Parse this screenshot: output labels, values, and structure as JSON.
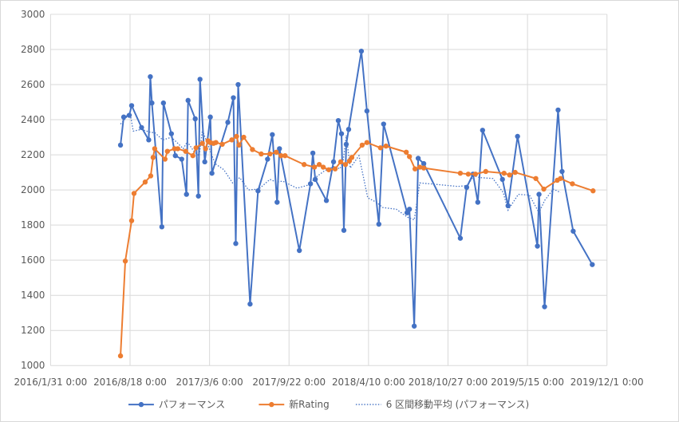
{
  "chart_data": {
    "type": "line",
    "title": "",
    "xlabel": "",
    "ylabel": "",
    "xlim": [
      "2016-01-31",
      "2019-12-01"
    ],
    "ylim": [
      1000,
      3000
    ],
    "grid": true,
    "legend_position": "bottom",
    "x_ticks": [
      "2016/1/31 0:00",
      "2016/8/18 0:00",
      "2017/3/6 0:00",
      "2017/9/22 0:00",
      "2018/4/10 0:00",
      "2018/10/27 0:00",
      "2019/5/15 0:00",
      "2019/12/1 0:00"
    ],
    "y_ticks": [
      "1000",
      "1200",
      "1400",
      "1600",
      "1800",
      "2000",
      "2200",
      "2400",
      "2600",
      "2800",
      "3000"
    ],
    "series": [
      {
        "name": "パフォーマンス",
        "color": "#4472C4",
        "style": "solid-marker",
        "points": [
          [
            "2016-07-25",
            2255
          ],
          [
            "2016-08-02",
            2415
          ],
          [
            "2016-08-16",
            2425
          ],
          [
            "2016-08-22",
            2480
          ],
          [
            "2016-09-16",
            2355
          ],
          [
            "2016-10-04",
            2285
          ],
          [
            "2016-10-08",
            2645
          ],
          [
            "2016-10-12",
            2495
          ],
          [
            "2016-11-06",
            1790
          ],
          [
            "2016-11-10",
            2495
          ],
          [
            "2016-11-30",
            2320
          ],
          [
            "2016-12-10",
            2195
          ],
          [
            "2016-12-26",
            2175
          ],
          [
            "2017-01-07",
            1975
          ],
          [
            "2017-01-11",
            2510
          ],
          [
            "2017-01-29",
            2405
          ],
          [
            "2017-02-06",
            1965
          ],
          [
            "2017-02-10",
            2630
          ],
          [
            "2017-02-22",
            2160
          ],
          [
            "2017-03-08",
            2415
          ],
          [
            "2017-03-12",
            2095
          ],
          [
            "2017-04-21",
            2385
          ],
          [
            "2017-05-05",
            2525
          ],
          [
            "2017-05-11",
            1695
          ],
          [
            "2017-05-17",
            2600
          ],
          [
            "2017-06-16",
            1350
          ],
          [
            "2017-07-06",
            1995
          ],
          [
            "2017-07-30",
            2175
          ],
          [
            "2017-08-11",
            2315
          ],
          [
            "2017-08-23",
            1930
          ],
          [
            "2017-08-29",
            2235
          ],
          [
            "2017-10-18",
            1655
          ],
          [
            "2017-11-15",
            2035
          ],
          [
            "2017-11-21",
            2210
          ],
          [
            "2017-11-27",
            2060
          ],
          [
            "2017-12-25",
            1940
          ],
          [
            "2018-01-12",
            2160
          ],
          [
            "2018-01-24",
            2395
          ],
          [
            "2018-02-01",
            2320
          ],
          [
            "2018-02-07",
            1770
          ],
          [
            "2018-02-13",
            2260
          ],
          [
            "2018-02-19",
            2345
          ],
          [
            "2018-03-23",
            2790
          ],
          [
            "2018-04-06",
            2450
          ],
          [
            "2018-05-06",
            1805
          ],
          [
            "2018-05-18",
            2375
          ],
          [
            "2018-07-16",
            1870
          ],
          [
            "2018-07-22",
            1890
          ],
          [
            "2018-08-03",
            1225
          ],
          [
            "2018-08-13",
            2180
          ],
          [
            "2018-08-27",
            2150
          ],
          [
            "2018-11-27",
            1725
          ],
          [
            "2018-12-13",
            2015
          ],
          [
            "2018-12-29",
            2090
          ],
          [
            "2019-01-10",
            1930
          ],
          [
            "2019-01-22",
            2340
          ],
          [
            "2019-03-13",
            2060
          ],
          [
            "2019-03-27",
            1910
          ],
          [
            "2019-04-20",
            2305
          ],
          [
            "2019-06-09",
            1680
          ],
          [
            "2019-06-13",
            1975
          ],
          [
            "2019-06-27",
            1335
          ],
          [
            "2019-07-31",
            2455
          ],
          [
            "2019-08-10",
            2105
          ],
          [
            "2019-09-07",
            1765
          ],
          [
            "2019-10-25",
            1575
          ]
        ]
      },
      {
        "name": "新Rating",
        "color": "#ED7D31",
        "style": "solid-marker",
        "points": [
          [
            "2016-07-25",
            1055
          ],
          [
            "2016-08-06",
            1595
          ],
          [
            "2016-08-22",
            1825
          ],
          [
            "2016-08-28",
            1980
          ],
          [
            "2016-09-25",
            2045
          ],
          [
            "2016-10-09",
            2080
          ],
          [
            "2016-10-15",
            2185
          ],
          [
            "2016-10-19",
            2235
          ],
          [
            "2016-11-14",
            2175
          ],
          [
            "2016-11-20",
            2220
          ],
          [
            "2016-12-08",
            2235
          ],
          [
            "2016-12-16",
            2235
          ],
          [
            "2017-01-05",
            2220
          ],
          [
            "2017-01-23",
            2195
          ],
          [
            "2017-01-31",
            2240
          ],
          [
            "2017-02-16",
            2265
          ],
          [
            "2017-02-24",
            2235
          ],
          [
            "2017-03-02",
            2280
          ],
          [
            "2017-03-08",
            2270
          ],
          [
            "2017-03-16",
            2265
          ],
          [
            "2017-03-22",
            2270
          ],
          [
            "2017-04-07",
            2260
          ],
          [
            "2017-05-01",
            2285
          ],
          [
            "2017-05-13",
            2305
          ],
          [
            "2017-05-19",
            2255
          ],
          [
            "2017-05-31",
            2300
          ],
          [
            "2017-06-22",
            2230
          ],
          [
            "2017-07-14",
            2205
          ],
          [
            "2017-08-05",
            2205
          ],
          [
            "2017-08-21",
            2215
          ],
          [
            "2017-09-02",
            2195
          ],
          [
            "2017-09-12",
            2195
          ],
          [
            "2017-10-30",
            2145
          ],
          [
            "2017-11-25",
            2130
          ],
          [
            "2017-12-07",
            2145
          ],
          [
            "2017-12-17",
            2130
          ],
          [
            "2017-12-31",
            2115
          ],
          [
            "2018-01-16",
            2120
          ],
          [
            "2018-01-30",
            2160
          ],
          [
            "2018-02-11",
            2145
          ],
          [
            "2018-02-21",
            2165
          ],
          [
            "2018-02-27",
            2185
          ],
          [
            "2018-03-25",
            2255
          ],
          [
            "2018-04-06",
            2270
          ],
          [
            "2018-05-10",
            2240
          ],
          [
            "2018-05-24",
            2250
          ],
          [
            "2018-07-14",
            2215
          ],
          [
            "2018-07-22",
            2190
          ],
          [
            "2018-08-05",
            2120
          ],
          [
            "2018-08-17",
            2130
          ],
          [
            "2018-08-27",
            2125
          ],
          [
            "2018-11-27",
            2095
          ],
          [
            "2018-12-17",
            2090
          ],
          [
            "2019-01-04",
            2090
          ],
          [
            "2019-01-30",
            2105
          ],
          [
            "2019-03-17",
            2095
          ],
          [
            "2019-03-31",
            2085
          ],
          [
            "2019-04-14",
            2100
          ],
          [
            "2019-06-05",
            2065
          ],
          [
            "2019-06-25",
            2005
          ],
          [
            "2019-07-29",
            2055
          ],
          [
            "2019-08-06",
            2065
          ],
          [
            "2019-09-05",
            2035
          ],
          [
            "2019-10-27",
            1995
          ]
        ]
      },
      {
        "name": "6 区間移動平均 (パフォーマンス)",
        "color": "#4472C4",
        "style": "dotted",
        "points": [
          [
            "2016-07-25",
            2375
          ],
          [
            "2016-08-06",
            2405
          ],
          [
            "2016-08-18",
            2440
          ],
          [
            "2016-08-26",
            2335
          ],
          [
            "2016-09-16",
            2345
          ],
          [
            "2016-10-06",
            2330
          ],
          [
            "2016-10-20",
            2325
          ],
          [
            "2016-11-08",
            2285
          ],
          [
            "2016-11-16",
            2290
          ],
          [
            "2016-11-30",
            2300
          ],
          [
            "2016-12-14",
            2270
          ],
          [
            "2016-12-30",
            2235
          ],
          [
            "2017-01-09",
            2275
          ],
          [
            "2017-01-27",
            2215
          ],
          [
            "2017-02-08",
            2195
          ],
          [
            "2017-02-16",
            2340
          ],
          [
            "2017-03-04",
            2245
          ],
          [
            "2017-03-20",
            2150
          ],
          [
            "2017-04-11",
            2115
          ],
          [
            "2017-05-03",
            2040
          ],
          [
            "2017-05-21",
            2070
          ],
          [
            "2017-06-12",
            2000
          ],
          [
            "2017-07-08",
            2005
          ],
          [
            "2017-08-05",
            2060
          ],
          [
            "2017-08-21",
            2045
          ],
          [
            "2017-09-06",
            2050
          ],
          [
            "2017-10-12",
            2010
          ],
          [
            "2017-11-13",
            2030
          ],
          [
            "2017-11-27",
            2070
          ],
          [
            "2017-12-21",
            2110
          ],
          [
            "2018-01-14",
            2135
          ],
          [
            "2018-01-28",
            2120
          ],
          [
            "2018-02-05",
            2160
          ],
          [
            "2018-02-13",
            2310
          ],
          [
            "2018-02-23",
            2125
          ],
          [
            "2018-03-17",
            2195
          ],
          [
            "2018-04-08",
            1955
          ],
          [
            "2018-04-30",
            1930
          ],
          [
            "2018-05-16",
            1900
          ],
          [
            "2018-06-19",
            1890
          ],
          [
            "2018-07-17",
            1845
          ],
          [
            "2018-08-03",
            1830
          ],
          [
            "2018-08-17",
            2040
          ],
          [
            "2018-09-12",
            2035
          ],
          [
            "2018-11-21",
            2020
          ],
          [
            "2018-12-15",
            2025
          ],
          [
            "2018-12-31",
            2080
          ],
          [
            "2019-01-16",
            2070
          ],
          [
            "2019-02-17",
            2065
          ],
          [
            "2019-03-15",
            1985
          ],
          [
            "2019-03-27",
            1885
          ],
          [
            "2019-04-22",
            1975
          ],
          [
            "2019-05-20",
            1970
          ],
          [
            "2019-06-13",
            1870
          ],
          [
            "2019-06-27",
            1940
          ],
          [
            "2019-07-19",
            2005
          ],
          [
            "2019-08-06",
            1985
          ]
        ]
      }
    ]
  }
}
